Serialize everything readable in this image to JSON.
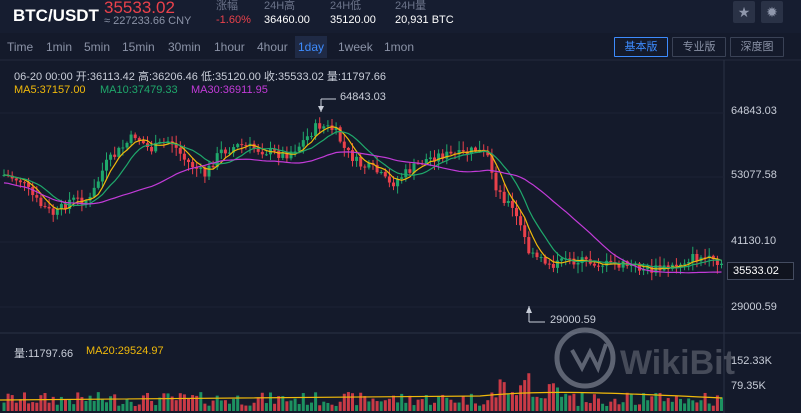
{
  "header": {
    "pair": "BTC/USDT",
    "price": "35533.02",
    "cny": "≈ 227233.66 CNY",
    "stats": [
      {
        "label": "涨幅",
        "value": "-1.60%"
      },
      {
        "label": "24H高",
        "value": "36460.00"
      },
      {
        "label": "24H低",
        "value": "35120.00"
      },
      {
        "label": "24H量",
        "value": "20,931 BTC"
      }
    ],
    "icons": [
      "star-icon",
      "theme-icon"
    ]
  },
  "toolbar": {
    "intervals": [
      "Time",
      "1min",
      "5min",
      "15min",
      "30min",
      "1hour",
      "4hour",
      "1day",
      "1week",
      "1mon"
    ],
    "active_interval": "1day",
    "modes": [
      "基本版",
      "专业版",
      "深度图"
    ],
    "active_mode": "基本版"
  },
  "info": {
    "ohlc": "06-20 00:00  开:36113.42  高:36206.46  低:35120.00  收:35533.02  量:11797.66",
    "ma5": "MA5:37157.00",
    "ma10": "MA10:37479.33",
    "ma30": "MA30:36911.95",
    "vol": "量:11797.66",
    "ma20": "MA20:29524.97"
  },
  "colors": {
    "up": "#1fa86b",
    "down": "#e9414b",
    "ma5": "#f0b90b",
    "ma10": "#1fa86b",
    "ma30": "#c23bd8",
    "vol_ma": "#f0b90b"
  },
  "axis": {
    "price_labels": [
      "64843.03",
      "53077.58",
      "41130.10",
      "29000.59"
    ],
    "volume_labels": [
      "152.33K",
      "79.35K"
    ],
    "current_price": "35533.02",
    "high_annotation": "64843.03",
    "low_annotation": "29000.59"
  },
  "watermark": "WikiBit"
}
